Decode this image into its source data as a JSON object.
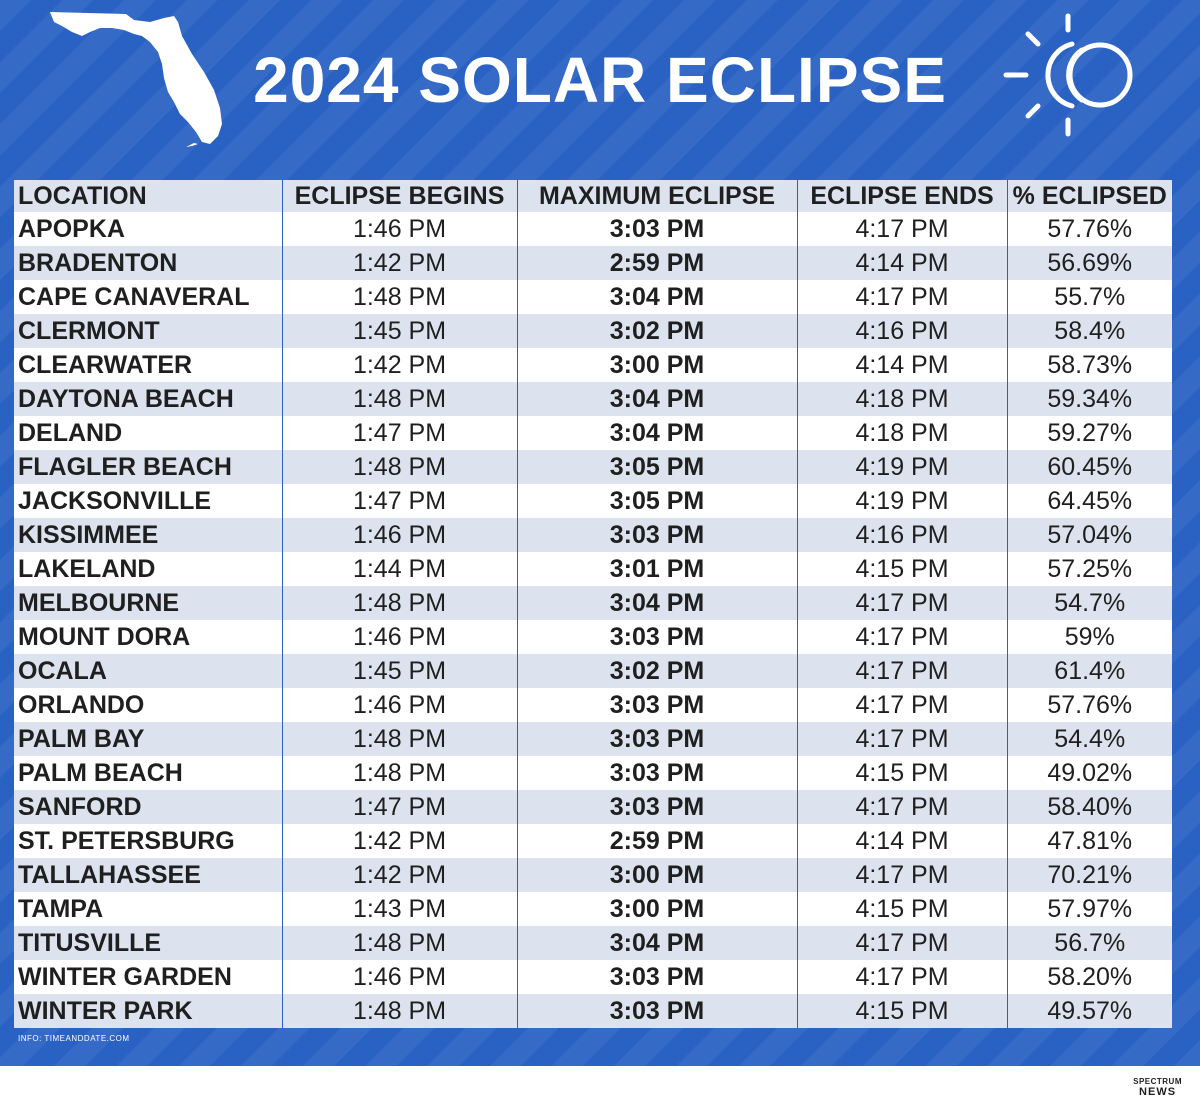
{
  "title": "2024 SOLAR ECLIPSE",
  "icons": {
    "state": "florida-map-icon",
    "eclipse": "eclipse-sun-icon"
  },
  "colors": {
    "background": "#2a62c4",
    "row_alt": "#dce3ee",
    "row": "#ffffff",
    "text": "#1f1f1f"
  },
  "table": {
    "headers": [
      "LOCATION",
      "ECLIPSE BEGINS",
      "MAXIMUM ECLIPSE",
      "ECLIPSE ENDS",
      "% ECLIPSED"
    ],
    "rows": [
      [
        "APOPKA",
        "1:46 PM",
        "3:03 PM",
        "4:17 PM",
        "57.76%"
      ],
      [
        "BRADENTON",
        "1:42 PM",
        "2:59 PM",
        "4:14 PM",
        "56.69%"
      ],
      [
        "CAPE CANAVERAL",
        "1:48 PM",
        "3:04 PM",
        "4:17 PM",
        "55.7%"
      ],
      [
        "CLERMONT",
        "1:45 PM",
        "3:02 PM",
        "4:16 PM",
        "58.4%"
      ],
      [
        "CLEARWATER",
        "1:42 PM",
        "3:00 PM",
        "4:14 PM",
        "58.73%"
      ],
      [
        "DAYTONA BEACH",
        "1:48 PM",
        "3:04 PM",
        "4:18 PM",
        "59.34%"
      ],
      [
        "DELAND",
        "1:47 PM",
        "3:04 PM",
        "4:18 PM",
        "59.27%"
      ],
      [
        "FLAGLER BEACH",
        "1:48 PM",
        "3:05 PM",
        "4:19 PM",
        "60.45%"
      ],
      [
        "JACKSONVILLE",
        "1:47 PM",
        "3:05 PM",
        "4:19 PM",
        "64.45%"
      ],
      [
        "KISSIMMEE",
        "1:46 PM",
        "3:03 PM",
        "4:16 PM",
        "57.04%"
      ],
      [
        "LAKELAND",
        "1:44 PM",
        "3:01 PM",
        "4:15 PM",
        "57.25%"
      ],
      [
        "MELBOURNE",
        "1:48 PM",
        "3:04 PM",
        "4:17 PM",
        "54.7%"
      ],
      [
        "MOUNT DORA",
        "1:46 PM",
        "3:03 PM",
        "4:17 PM",
        "59%"
      ],
      [
        "OCALA",
        "1:45 PM",
        "3:02 PM",
        "4:17 PM",
        "61.4%"
      ],
      [
        "ORLANDO",
        "1:46 PM",
        "3:03 PM",
        "4:17 PM",
        "57.76%"
      ],
      [
        "PALM BAY",
        "1:48 PM",
        "3:03 PM",
        "4:17 PM",
        "54.4%"
      ],
      [
        "PALM BEACH",
        "1:48 PM",
        "3:03 PM",
        "4:15 PM",
        "49.02%"
      ],
      [
        "SANFORD",
        "1:47 PM",
        "3:03 PM",
        "4:17 PM",
        "58.40%"
      ],
      [
        "ST. PETERSBURG",
        "1:42 PM",
        "2:59 PM",
        "4:14 PM",
        "47.81%"
      ],
      [
        "TALLAHASSEE",
        "1:42 PM",
        "3:00 PM",
        "4:17 PM",
        "70.21%"
      ],
      [
        "TAMPA",
        "1:43 PM",
        "3:00 PM",
        "4:15 PM",
        "57.97%"
      ],
      [
        "TITUSVILLE",
        "1:48 PM",
        "3:04 PM",
        "4:17 PM",
        "56.7%"
      ],
      [
        "WINTER GARDEN",
        "1:46 PM",
        "3:03 PM",
        "4:17 PM",
        "58.20%"
      ],
      [
        "WINTER PARK",
        "1:48 PM",
        "3:03 PM",
        "4:15 PM",
        "49.57%"
      ]
    ]
  },
  "source": "INFO: TIMEANDDATE.COM",
  "brand": {
    "line1": "SPECTRUM",
    "line2": "NEWS"
  }
}
